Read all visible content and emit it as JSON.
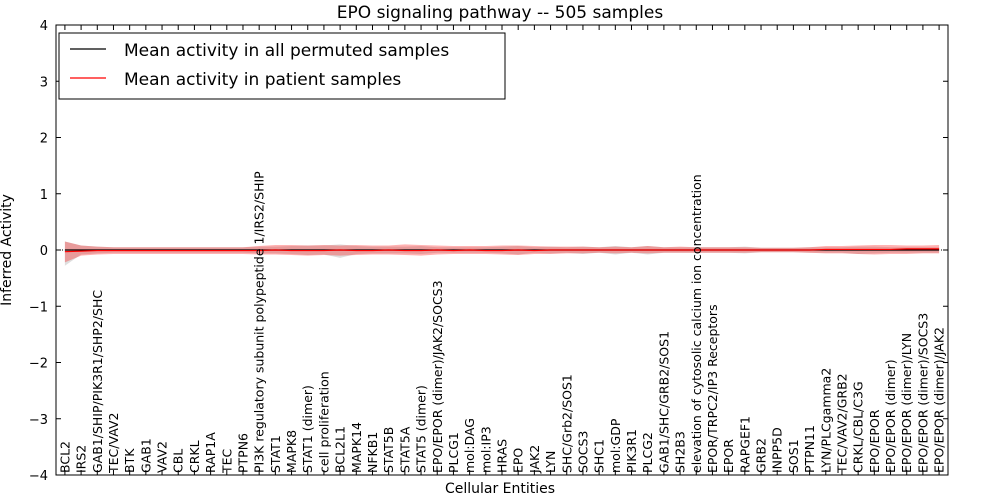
{
  "chart_data": {
    "type": "line",
    "title": "EPO signaling pathway -- 505 samples",
    "xlabel": "Cellular Entities",
    "ylabel": "Inferred Activity",
    "ylim": [
      -4,
      4
    ],
    "yticks": [
      -4,
      -3,
      -2,
      -1,
      0,
      1,
      2,
      3,
      4
    ],
    "ytick_labels": [
      "−4",
      "−3",
      "−2",
      "−1",
      "0",
      "1",
      "2",
      "3",
      "4"
    ],
    "legend_position": "top-left",
    "categories": [
      "BCL2",
      "IRS2",
      "GAB1/SHIP/PIK3R1/SHP2/SHC",
      "TEC/VAV2",
      "BTK",
      "GAB1",
      "VAV2",
      "CBL",
      "CRKL",
      "RAP1A",
      "TEC",
      "PTPN6",
      "PI3K regulatory subunit polypeptide 1/IRS2/SHIP",
      "STAT1",
      "MAPK8",
      "STAT1 (dimer)",
      "cell proliferation",
      "BCL2L1",
      "MAPK14",
      "NFKB1",
      "STAT5B",
      "STAT5A",
      "STAT5 (dimer)",
      "EPO/EPOR (dimer)/JAK2/SOCS3",
      "PLCG1",
      "mol:DAG",
      "mol:IP3",
      "HRAS",
      "EPO",
      "JAK2",
      "LYN",
      "SHC/Grb2/SOS1",
      "SOCS3",
      "SHC1",
      "mol:GDP",
      "PIK3R1",
      "PLCG2",
      "GAB1/SHC/GRB2/SOS1",
      "SH2B3",
      "elevation of cytosolic calcium ion concentration",
      "EPOR/TRPC2/IP3 Receptors",
      "EPOR",
      "RAPGEF1",
      "GRB2",
      "INPP5D",
      "SOS1",
      "PTPN11",
      "LYN/PLCgamma2",
      "TEC/VAV2/GRB2",
      "CRKL/CBL/C3G",
      "EPO/EPOR",
      "EPO/EPOR (dimer)",
      "EPO/EPOR (dimer)/LYN",
      "EPO/EPOR (dimer)/SOCS3",
      "EPO/EPOR (dimer)/JAK2"
    ],
    "series": [
      {
        "name": "Mean activity in all permuted samples",
        "color": "#000000",
        "values": [
          0,
          0,
          0,
          0,
          0,
          0,
          0,
          0,
          0,
          0,
          0,
          0,
          0,
          0,
          0,
          0,
          0,
          0,
          0,
          0,
          0,
          0,
          0,
          0,
          0,
          0,
          0,
          0,
          0,
          0,
          0,
          0,
          0,
          0,
          0,
          0,
          0,
          0,
          0,
          0,
          0,
          0,
          0,
          0,
          0,
          0,
          0,
          0,
          0,
          0,
          0,
          0,
          0,
          0,
          0
        ],
        "band_lower": [
          -0.28,
          -0.08,
          -0.06,
          -0.05,
          -0.05,
          -0.05,
          -0.05,
          -0.05,
          -0.05,
          -0.05,
          -0.05,
          -0.05,
          -0.06,
          -0.06,
          -0.07,
          -0.09,
          -0.08,
          -0.14,
          -0.07,
          -0.06,
          -0.06,
          -0.06,
          -0.07,
          -0.05,
          -0.05,
          -0.05,
          -0.05,
          -0.06,
          -0.08,
          -0.05,
          -0.06,
          -0.05,
          -0.07,
          -0.05,
          -0.08,
          -0.05,
          -0.08,
          -0.05,
          -0.05,
          -0.05,
          -0.05,
          -0.05,
          -0.06,
          -0.04,
          -0.04,
          -0.04,
          -0.05,
          -0.05,
          -0.05,
          -0.07,
          -0.06,
          -0.05,
          -0.05,
          -0.05,
          -0.05
        ],
        "band_upper": [
          0.15,
          0.08,
          0.06,
          0.05,
          0.05,
          0.05,
          0.05,
          0.05,
          0.05,
          0.05,
          0.05,
          0.05,
          0.06,
          0.06,
          0.07,
          0.08,
          0.08,
          0.1,
          0.07,
          0.06,
          0.06,
          0.06,
          0.07,
          0.05,
          0.05,
          0.05,
          0.05,
          0.06,
          0.07,
          0.05,
          0.06,
          0.05,
          0.06,
          0.05,
          0.07,
          0.05,
          0.07,
          0.05,
          0.05,
          0.05,
          0.05,
          0.05,
          0.06,
          0.04,
          0.04,
          0.04,
          0.05,
          0.05,
          0.05,
          0.06,
          0.06,
          0.05,
          0.05,
          0.05,
          0.05
        ]
      },
      {
        "name": "Mean activity in patient samples",
        "color": "#ff0000",
        "values": [
          -0.03,
          -0.02,
          -0.01,
          -0.01,
          -0.01,
          -0.01,
          -0.01,
          -0.01,
          -0.01,
          -0.01,
          -0.01,
          -0.01,
          -0.01,
          0,
          -0.01,
          -0.01,
          -0.01,
          0,
          -0.01,
          -0.01,
          0,
          -0.01,
          -0.01,
          0,
          -0.01,
          0,
          -0.01,
          -0.01,
          0,
          -0.01,
          0,
          0,
          0,
          0,
          0,
          0,
          0,
          0,
          0,
          0,
          0,
          0,
          0,
          0,
          0,
          0,
          0,
          0.01,
          0.01,
          0.01,
          0.01,
          0.01,
          0.02,
          0.02,
          0.02
        ],
        "band_lower": [
          -0.22,
          -0.1,
          -0.08,
          -0.07,
          -0.07,
          -0.07,
          -0.07,
          -0.07,
          -0.07,
          -0.07,
          -0.07,
          -0.07,
          -0.08,
          -0.08,
          -0.09,
          -0.1,
          -0.09,
          -0.1,
          -0.09,
          -0.08,
          -0.08,
          -0.09,
          -0.1,
          -0.08,
          -0.07,
          -0.07,
          -0.07,
          -0.08,
          -0.09,
          -0.07,
          -0.07,
          -0.06,
          -0.06,
          -0.05,
          -0.06,
          -0.05,
          -0.06,
          -0.05,
          -0.05,
          -0.05,
          -0.05,
          -0.05,
          -0.05,
          -0.04,
          -0.04,
          -0.04,
          -0.05,
          -0.06,
          -0.06,
          -0.07,
          -0.08,
          -0.07,
          -0.07,
          -0.06,
          -0.06
        ],
        "band_upper": [
          0.15,
          0.08,
          0.06,
          0.05,
          0.05,
          0.05,
          0.05,
          0.05,
          0.05,
          0.05,
          0.05,
          0.05,
          0.07,
          0.09,
          0.09,
          0.08,
          0.09,
          0.08,
          0.09,
          0.08,
          0.08,
          0.1,
          0.09,
          0.08,
          0.07,
          0.07,
          0.07,
          0.08,
          0.08,
          0.07,
          0.06,
          0.06,
          0.06,
          0.05,
          0.06,
          0.05,
          0.07,
          0.05,
          0.06,
          0.05,
          0.05,
          0.05,
          0.05,
          0.04,
          0.04,
          0.04,
          0.05,
          0.07,
          0.07,
          0.08,
          0.09,
          0.09,
          0.08,
          0.08,
          0.09
        ]
      }
    ]
  }
}
